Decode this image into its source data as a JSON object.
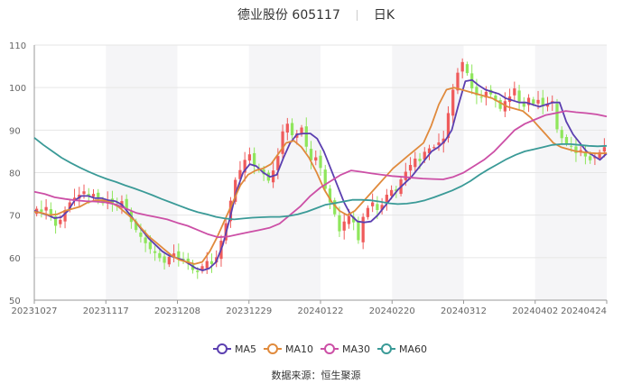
{
  "title": {
    "name": "德业股份",
    "code": "605117",
    "period": "日K"
  },
  "source": "数据来源：恒生聚源",
  "colors": {
    "up": "#ef5b5b",
    "down": "#8fe65c",
    "MA5": "#5b3fb0",
    "MA10": "#e08a3c",
    "MA30": "#cc4fa6",
    "MA60": "#3a9a97",
    "grid": "#e6e6e6",
    "band": "#f5f5f7"
  },
  "chart_data": {
    "type": "candlestick",
    "ylim": [
      50,
      110
    ],
    "yticks": [
      50,
      60,
      70,
      80,
      90,
      100,
      110
    ],
    "xticks": [
      "20231027",
      "20231117",
      "20231208",
      "20231229",
      "20240122",
      "20240220",
      "20240312",
      "20240402",
      "20240424"
    ],
    "candles_count": 121,
    "closes": [
      71.5,
      70.8,
      71.9,
      69.8,
      67.5,
      68.9,
      71.2,
      73.0,
      74.1,
      74.8,
      75.6,
      74.5,
      75.0,
      74.2,
      72.8,
      73.5,
      72.9,
      72.1,
      73.3,
      71.2,
      68.4,
      66.5,
      64.9,
      63.4,
      62.0,
      61.1,
      59.9,
      58.8,
      60.2,
      61.0,
      60.0,
      59.6,
      59.0,
      57.1,
      56.6,
      58.0,
      59.2,
      58.5,
      60.1,
      64.0,
      68.1,
      73.4,
      78.3,
      80.6,
      83.0,
      84.3,
      81.5,
      80.8,
      79.6,
      78.1,
      80.5,
      83.9,
      89.7,
      91.5,
      88.8,
      89.2,
      90.6,
      86.1,
      82.9,
      83.6,
      81.1,
      76.2,
      73.0,
      70.2,
      66.2,
      68.5,
      69.8,
      68.3,
      64.1,
      69.6,
      71.7,
      73.0,
      71.2,
      72.4,
      74.8,
      75.9,
      75.6,
      78.4,
      80.2,
      81.8,
      83.3,
      82.7,
      84.9,
      85.7,
      86.0,
      87.1,
      88.0,
      94.0,
      99.5,
      103.5,
      106.0,
      103.4,
      99.8,
      98.2,
      97.6,
      99.0,
      98.4,
      96.9,
      95.0,
      96.8,
      97.9,
      99.8,
      96.7,
      95.5,
      97.6,
      96.2,
      97.1,
      95.8,
      96.2,
      96.8,
      90.2,
      88.1,
      86.8,
      86.2,
      84.6,
      85.3,
      83.8,
      82.9,
      83.7,
      84.8,
      86.0
    ],
    "series": [
      {
        "name": "MA5",
        "values": [
          71,
          70.5,
          70,
          69.3,
          69.5,
          71,
          73.5,
          74.5,
          74.5,
          74,
          74,
          73.5,
          73.3,
          72.5,
          70.5,
          68.5,
          66.5,
          64.5,
          63,
          61.5,
          60.5,
          60,
          59.5,
          58.5,
          57.5,
          57,
          57.5,
          59,
          63,
          69,
          75.5,
          80,
          82,
          81.5,
          80,
          79,
          79.5,
          83.5,
          87,
          89,
          89.2,
          89.2,
          88,
          85,
          81,
          77,
          73,
          70,
          68.5,
          68.3,
          68.5,
          70,
          72,
          74,
          76,
          77.5,
          79,
          81,
          83,
          85,
          86,
          87.5,
          90,
          96,
          101.5,
          101.8,
          100.5,
          99.5,
          99,
          98.5,
          97.5,
          97,
          96.5,
          96.5,
          96,
          95.5,
          96,
          96.5,
          96.5,
          92,
          89,
          87,
          85,
          84,
          83,
          84.5
        ]
      },
      {
        "name": "MA10",
        "values": [
          70.8,
          70.5,
          70,
          70.2,
          71,
          71.5,
          72,
          73,
          73.5,
          73.5,
          73,
          72,
          70.5,
          69,
          67,
          65,
          63.5,
          62,
          60.5,
          59.5,
          59,
          58.5,
          59,
          61.5,
          65,
          69,
          73,
          77,
          79.5,
          80.5,
          81,
          82,
          84.5,
          87,
          87.5,
          86,
          83.5,
          80,
          76,
          73,
          71,
          70,
          71,
          73,
          75,
          77,
          79,
          81,
          82.5,
          84,
          85.5,
          87,
          91,
          96,
          99.5,
          100,
          99.5,
          99,
          98.5,
          98,
          97.5,
          96.5,
          95.5,
          95,
          94.5,
          93,
          91,
          89,
          87,
          86,
          85.5,
          85,
          84.8,
          84.6,
          84.5,
          84.6
        ]
      },
      {
        "name": "MA30",
        "values": [
          75.5,
          75,
          74.2,
          73.8,
          73.5,
          73.3,
          73.2,
          73,
          72.5,
          71.5,
          70.5,
          70,
          69.5,
          69,
          68.2,
          67.5,
          66.5,
          65.5,
          64.8,
          65,
          65.5,
          66,
          66.5,
          67,
          68,
          70,
          72,
          74.5,
          76.5,
          78,
          79.5,
          80.5,
          80.2,
          79.8,
          79.5,
          79.2,
          79,
          78.8,
          78.6,
          78.5,
          78.4,
          79,
          80,
          81.5,
          83,
          85,
          87.5,
          90,
          91.5,
          92.5,
          93.5,
          94,
          94.5,
          94.2,
          94,
          93.7,
          93.2
        ]
      },
      {
        "name": "MA60",
        "values": [
          88.2,
          86.5,
          85,
          83.5,
          82.3,
          81.2,
          80.2,
          79.3,
          78.5,
          77.8,
          77,
          76.3,
          75.5,
          74.7,
          73.8,
          73,
          72.2,
          71.4,
          70.7,
          70.2,
          69.6,
          69.2,
          69,
          69.2,
          69.4,
          69.5,
          69.6,
          69.6,
          69.8,
          70.2,
          70.8,
          71.6,
          72.4,
          72.8,
          73.2,
          73.6,
          73.6,
          73.5,
          73.2,
          72.8,
          72.6,
          72.7,
          73,
          73.5,
          74.2,
          75,
          75.8,
          76.8,
          78,
          79.5,
          80.8,
          82,
          83.2,
          84.2,
          85,
          85.5,
          86,
          86.5,
          86.7,
          86.7,
          86.5,
          86.3,
          86.2,
          86.3
        ]
      }
    ]
  }
}
